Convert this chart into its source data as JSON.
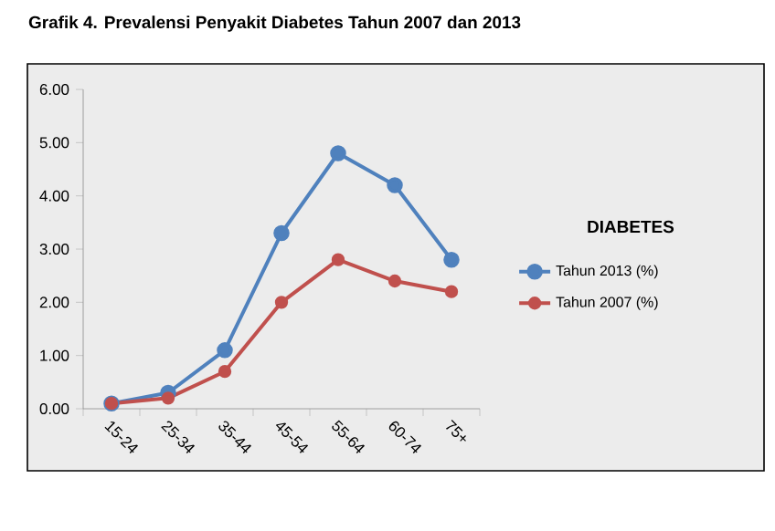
{
  "chart_data": {
    "type": "line",
    "title": "Grafik 4.  Prevalensi Penyakit Diabetes Tahun 2007 dan 2013",
    "legend_title": "DIABETES",
    "categories": [
      "15-24",
      "25-34",
      "35-44",
      "45-54",
      "55-64",
      "60-74",
      "75+"
    ],
    "series": [
      {
        "name": "Tahun 2013 (%)",
        "color": "#4f81bd",
        "values": [
          0.1,
          0.3,
          1.1,
          3.3,
          4.8,
          4.2,
          2.8
        ]
      },
      {
        "name": "Tahun 2007 (%)",
        "color": "#c0504d",
        "values": [
          0.1,
          0.2,
          0.7,
          2.0,
          2.8,
          2.4,
          2.2
        ]
      }
    ],
    "ylim": [
      0,
      6
    ],
    "yticks": [
      {
        "value": 0,
        "label": "0.00"
      },
      {
        "value": 1,
        "label": "1.00"
      },
      {
        "value": 2,
        "label": "2.00"
      },
      {
        "value": 3,
        "label": "3.00"
      },
      {
        "value": 4,
        "label": "4.00"
      },
      {
        "value": 5,
        "label": "5.00"
      },
      {
        "value": 6,
        "label": "6.00"
      }
    ],
    "grid": false,
    "legend": "right",
    "marker": "circle",
    "line_style": "solid"
  }
}
